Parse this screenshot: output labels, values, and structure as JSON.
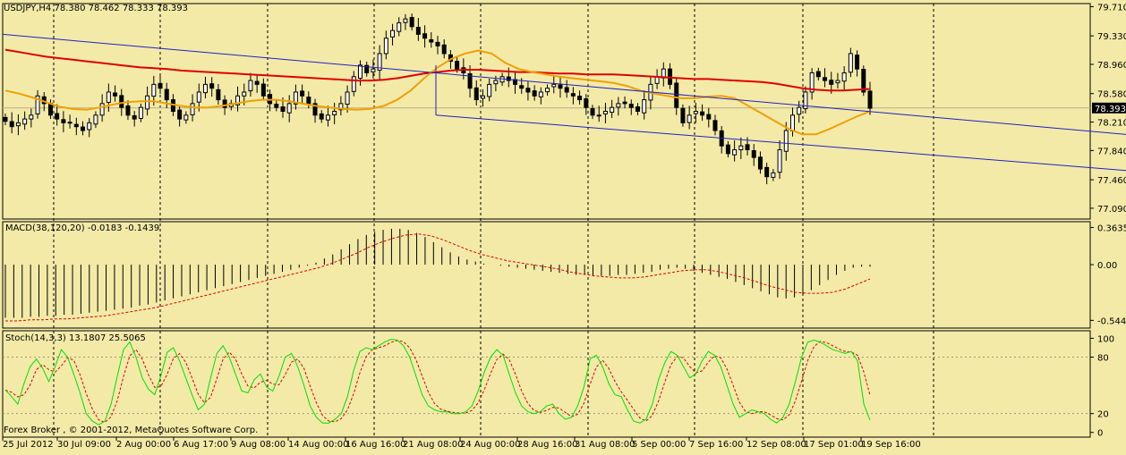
{
  "window": {
    "title": "USDJPY,H4 78.380 78.462 78.333 78.393",
    "footer": "Forex Broker , © 2001-2012, MetaQuotes Software Corp."
  },
  "colors": {
    "background": "#f3eaa8",
    "bull": "#ffffff",
    "bear": "#000000",
    "ma_slow": "#e00000",
    "ma_fast": "#f0a000",
    "channel": "#2020c0",
    "macd_signal": "#e00000",
    "stoch_main": "#00e000",
    "stoch_signal": "#e00000",
    "price_marker": "#000000"
  },
  "chart_data": [
    {
      "type": "candlestick",
      "title": "USDJPY,H4",
      "ohlc_last": {
        "open": 78.38,
        "high": 78.462,
        "low": 78.333,
        "close": 78.393
      },
      "current_price": "78.393",
      "ylim": [
        76.95,
        79.75
      ],
      "y_ticks": [
        "79.710",
        "79.330",
        "78.960",
        "78.580",
        "78.210",
        "77.840",
        "77.460",
        "77.090"
      ],
      "closes": [
        78.22,
        78.15,
        78.2,
        78.25,
        78.3,
        78.55,
        78.45,
        78.3,
        78.25,
        78.2,
        78.2,
        78.15,
        78.1,
        78.2,
        78.3,
        78.45,
        78.6,
        78.55,
        78.4,
        78.3,
        78.25,
        78.4,
        78.55,
        78.7,
        78.65,
        78.5,
        78.35,
        78.25,
        78.3,
        78.45,
        78.6,
        78.7,
        78.65,
        78.5,
        78.4,
        78.45,
        78.55,
        78.6,
        78.75,
        78.7,
        78.55,
        78.45,
        78.4,
        78.35,
        78.45,
        78.6,
        78.55,
        78.45,
        78.3,
        78.25,
        78.3,
        78.35,
        78.45,
        78.6,
        78.8,
        78.95,
        78.85,
        78.9,
        79.1,
        79.3,
        79.4,
        79.5,
        79.55,
        79.45,
        79.35,
        79.3,
        79.25,
        79.2,
        79.1,
        79.0,
        78.9,
        78.85,
        78.65,
        78.5,
        78.55,
        78.7,
        78.75,
        78.8,
        78.75,
        78.7,
        78.65,
        78.6,
        78.55,
        78.6,
        78.65,
        78.7,
        78.65,
        78.6,
        78.55,
        78.5,
        78.4,
        78.3,
        78.3,
        78.35,
        78.4,
        78.45,
        78.45,
        78.4,
        78.35,
        78.5,
        78.7,
        78.8,
        78.9,
        78.7,
        78.4,
        78.2,
        78.3,
        78.35,
        78.3,
        78.25,
        78.1,
        77.9,
        77.8,
        77.85,
        77.9,
        77.85,
        77.75,
        77.6,
        77.5,
        77.55,
        77.85,
        78.1,
        78.3,
        78.4,
        78.6,
        78.85,
        78.8,
        78.75,
        78.7,
        78.75,
        78.85,
        79.1,
        78.9,
        78.6,
        78.39
      ],
      "ma_slow": [
        79.15,
        79.12,
        79.09,
        79.06,
        79.04,
        79.02,
        79.0,
        78.98,
        78.96,
        78.94,
        78.92,
        78.91,
        78.9,
        78.88,
        78.87,
        78.86,
        78.85,
        78.84,
        78.83,
        78.82,
        78.81,
        78.8,
        78.79,
        78.78,
        78.77,
        78.76,
        78.75,
        78.75,
        78.76,
        78.78,
        78.81,
        78.84,
        78.86,
        78.88,
        78.89,
        78.89,
        78.88,
        78.87,
        78.86,
        78.86,
        78.85,
        78.84,
        78.84,
        78.83,
        78.83,
        78.83,
        78.82,
        78.81,
        78.8,
        78.79,
        78.78,
        78.77,
        78.77,
        78.76,
        78.75,
        78.74,
        78.73,
        78.71,
        78.68,
        78.65,
        78.63,
        78.62,
        78.62,
        78.63,
        78.64
      ],
      "ma_fast": [
        78.62,
        78.58,
        78.53,
        78.47,
        78.41,
        78.38,
        78.37,
        78.4,
        78.44,
        78.47,
        78.48,
        78.48,
        78.45,
        78.42,
        78.4,
        78.4,
        78.42,
        78.45,
        78.48,
        78.5,
        78.5,
        78.48,
        78.45,
        78.42,
        78.4,
        78.38,
        78.37,
        78.38,
        78.42,
        78.5,
        78.62,
        78.78,
        78.92,
        79.03,
        79.1,
        79.14,
        79.1,
        78.98,
        78.9,
        78.86,
        78.83,
        78.8,
        78.78,
        78.76,
        78.74,
        78.72,
        78.68,
        78.62,
        78.58,
        78.55,
        78.52,
        78.52,
        78.54,
        78.55,
        78.52,
        78.42,
        78.32,
        78.22,
        78.12,
        78.05,
        78.05,
        78.12,
        78.2,
        78.28,
        78.35
      ],
      "channel_upper": {
        "from": [
          "25 Jul 2012",
          79.35
        ],
        "to": [
          "19 Sep 16:00",
          78.38
        ]
      },
      "channel_lower": {
        "from": [
          "21 Aug 08:00",
          78.3
        ],
        "to": [
          "19 Sep 16:00",
          77.73
        ]
      }
    },
    {
      "type": "bar",
      "title": "MACD(38,120,20) -0.0183 -0.1439",
      "ylim": [
        -0.62,
        0.42
      ],
      "y_ticks": [
        "0.3635",
        "0.00",
        "-0.5446"
      ],
      "values": [
        -0.52,
        -0.52,
        -0.52,
        -0.51,
        -0.51,
        -0.5,
        -0.5,
        -0.49,
        -0.49,
        -0.48,
        -0.47,
        -0.46,
        -0.45,
        -0.44,
        -0.43,
        -0.42,
        -0.4,
        -0.39,
        -0.37,
        -0.35,
        -0.33,
        -0.31,
        -0.29,
        -0.27,
        -0.25,
        -0.23,
        -0.21,
        -0.19,
        -0.17,
        -0.15,
        -0.13,
        -0.11,
        -0.09,
        -0.07,
        -0.05,
        -0.03,
        -0.01,
        0.02,
        0.06,
        0.1,
        0.15,
        0.2,
        0.25,
        0.29,
        0.32,
        0.34,
        0.35,
        0.35,
        0.34,
        0.31,
        0.27,
        0.22,
        0.17,
        0.12,
        0.08,
        0.05,
        0.03,
        0.01,
        0.0,
        -0.01,
        -0.02,
        -0.03,
        -0.04,
        -0.05,
        -0.06,
        -0.07,
        -0.08,
        -0.09,
        -0.1,
        -0.1,
        -0.11,
        -0.11,
        -0.11,
        -0.1,
        -0.1,
        -0.09,
        -0.08,
        -0.07,
        -0.05,
        -0.04,
        -0.03,
        -0.04,
        -0.06,
        -0.08,
        -0.1,
        -0.12,
        -0.14,
        -0.17,
        -0.2,
        -0.23,
        -0.26,
        -0.29,
        -0.32,
        -0.33,
        -0.32,
        -0.29,
        -0.25,
        -0.2,
        -0.15,
        -0.1,
        -0.06,
        -0.03,
        -0.02,
        -0.02
      ],
      "signal": [
        -0.55,
        -0.55,
        -0.54,
        -0.54,
        -0.53,
        -0.53,
        -0.52,
        -0.51,
        -0.5,
        -0.48,
        -0.46,
        -0.44,
        -0.42,
        -0.39,
        -0.36,
        -0.33,
        -0.3,
        -0.27,
        -0.24,
        -0.21,
        -0.18,
        -0.15,
        -0.12,
        -0.09,
        -0.06,
        -0.03,
        0.01,
        0.06,
        0.11,
        0.17,
        0.22,
        0.26,
        0.29,
        0.3,
        0.28,
        0.24,
        0.19,
        0.14,
        0.1,
        0.07,
        0.04,
        0.02,
        0.0,
        -0.02,
        -0.04,
        -0.07,
        -0.09,
        -0.11,
        -0.12,
        -0.13,
        -0.13,
        -0.12,
        -0.1,
        -0.08,
        -0.06,
        -0.05,
        -0.05,
        -0.07,
        -0.1,
        -0.13,
        -0.17,
        -0.21,
        -0.24,
        -0.27,
        -0.28,
        -0.28,
        -0.27,
        -0.24,
        -0.19,
        -0.14
      ]
    },
    {
      "type": "line",
      "title": "Stoch(14,3,3) 13.1807 25.5065",
      "ylim": [
        -5,
        108
      ],
      "y_ticks": [
        "100",
        "80",
        "20",
        "0"
      ],
      "levels": [
        80,
        20
      ],
      "k": [
        45,
        38,
        30,
        52,
        70,
        78,
        68,
        54,
        70,
        88,
        80,
        62,
        42,
        20,
        12,
        8,
        12,
        30,
        60,
        88,
        96,
        80,
        58,
        46,
        40,
        60,
        85,
        90,
        76,
        58,
        40,
        24,
        30,
        58,
        84,
        92,
        80,
        62,
        44,
        42,
        56,
        62,
        48,
        44,
        60,
        80,
        84,
        70,
        50,
        28,
        16,
        10,
        10,
        14,
        20,
        38,
        66,
        86,
        90,
        88,
        92,
        96,
        99,
        98,
        92,
        80,
        60,
        40,
        28,
        24,
        22,
        22,
        20,
        20,
        22,
        28,
        44,
        64,
        80,
        88,
        82,
        62,
        42,
        28,
        22,
        20,
        22,
        28,
        30,
        20,
        14,
        16,
        28,
        48,
        78,
        82,
        70,
        52,
        40,
        38,
        24,
        12,
        10,
        14,
        30,
        56,
        74,
        86,
        82,
        70,
        58,
        62,
        76,
        86,
        82,
        70,
        50,
        30,
        16,
        20,
        24,
        22,
        20,
        14,
        10,
        16,
        30,
        54,
        80,
        96,
        98,
        96,
        92,
        88,
        86,
        84,
        86,
        76,
        30,
        13
      ]
    }
  ],
  "x_ticks": [
    "25 Jul 2012",
    "30 Jul 09:00",
    "2 Aug 00:00",
    "6 Aug 17:00",
    "9 Aug 08:00",
    "14 Aug 00:00",
    "16 Aug 16:00",
    "21 Aug 08:00",
    "24 Aug 00:00",
    "28 Aug 16:00",
    "31 Aug 08:00",
    "5 Sep 00:00",
    "7 Sep 16:00",
    "12 Sep 08:00",
    "17 Sep 01:00",
    "19 Sep 16:00"
  ]
}
